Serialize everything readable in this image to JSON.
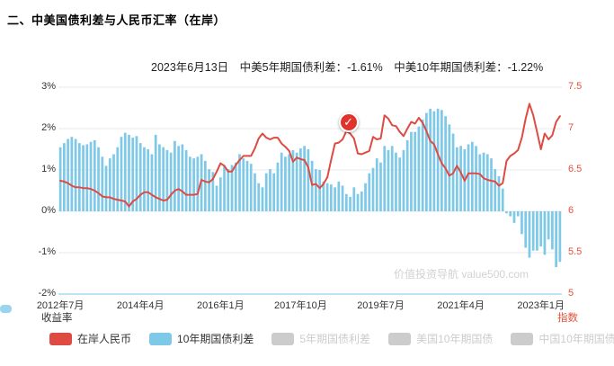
{
  "page": {
    "title": "二、中美国债利差与人民币汇率（在岸）",
    "subtitle": "2023年6月13日　中美5年期国债利差：-1.61%　中美10年期国债利差：-1.22%"
  },
  "watermark": "价值投资导航 value500.com",
  "chart_data": {
    "type": "bar",
    "subtype": "dual-axis combo: bars (left % axis) + line (right index axis)",
    "n_points": 132,
    "x_start": "2012-07",
    "x_interval": "month",
    "x_tick_labels": [
      "2012年7月",
      "2014年4月",
      "2016年1月",
      "2017年10月",
      "2019年7月",
      "2021年4月",
      "2023年1月"
    ],
    "x_tick_month_indices": [
      0,
      21,
      42,
      63,
      84,
      105,
      126
    ],
    "yaxis_left": {
      "name": "收益率",
      "min": -2,
      "max": 3,
      "ticks": [
        "3%",
        "2%",
        "1%",
        "0%",
        "-1%",
        "-2%"
      ],
      "color": "#333333"
    },
    "yaxis_right": {
      "name": "指数",
      "min": 5,
      "max": 7.5,
      "ticks": [
        "7.5",
        "7",
        "6.5",
        "6",
        "5.5",
        "5"
      ],
      "color": "#e8503a"
    },
    "axis_line_color": "#7ec9e8",
    "grid": true,
    "legend_position": "bottom",
    "series": [
      {
        "name": "10年期国债利差",
        "type": "bar",
        "axis": "left",
        "unit": "%",
        "color": "#7ec9e8",
        "values": [
          1.55,
          1.65,
          1.75,
          1.8,
          1.75,
          1.65,
          1.6,
          1.62,
          1.68,
          1.72,
          1.55,
          1.32,
          1.1,
          1.28,
          1.38,
          1.55,
          1.8,
          1.9,
          1.85,
          1.78,
          1.82,
          1.65,
          1.55,
          1.5,
          1.38,
          1.85,
          1.62,
          1.55,
          1.48,
          1.42,
          1.7,
          1.58,
          1.62,
          1.48,
          1.32,
          1.28,
          1.32,
          1.38,
          1.22,
          1.02,
          0.95,
          0.62,
          0.82,
          1.12,
          1.02,
          1.12,
          1.18,
          1.38,
          1.28,
          1.22,
          1.15,
          0.92,
          0.68,
          0.58,
          0.92,
          1.02,
          0.92,
          1.18,
          1.42,
          1.32,
          1.38,
          1.48,
          1.42,
          1.52,
          1.58,
          1.5,
          1.22,
          1.02,
          1.0,
          0.72,
          0.68,
          0.65,
          0.58,
          0.72,
          0.62,
          0.42,
          0.35,
          0.58,
          0.42,
          0.48,
          0.68,
          0.92,
          1.05,
          1.28,
          1.18,
          1.58,
          1.48,
          1.58,
          1.42,
          1.3,
          1.48,
          1.72,
          1.92,
          1.92,
          2.05,
          2.22,
          2.38,
          2.48,
          2.42,
          2.48,
          2.45,
          2.3,
          2.1,
          1.88,
          1.55,
          1.58,
          1.5,
          1.62,
          1.68,
          1.58,
          1.38,
          1.42,
          1.38,
          1.28,
          1.02,
          0.85,
          0.55,
          -0.05,
          -0.12,
          -0.28,
          -0.12,
          -0.55,
          -0.88,
          -1.12,
          -0.95,
          -0.95,
          -0.85,
          -1.05,
          -0.68,
          -0.92,
          -1.35,
          -1.22
        ]
      },
      {
        "name": "在岸人民币",
        "type": "line",
        "axis": "right",
        "unit": "CNY per USD",
        "color": "#dd4b43",
        "values": [
          6.37,
          6.36,
          6.34,
          6.31,
          6.29,
          6.29,
          6.28,
          6.28,
          6.27,
          6.25,
          6.22,
          6.18,
          6.17,
          6.17,
          6.15,
          6.14,
          6.13,
          6.12,
          6.06,
          6.12,
          6.15,
          6.2,
          6.23,
          6.23,
          6.2,
          6.17,
          6.15,
          6.13,
          6.14,
          6.2,
          6.25,
          6.27,
          6.24,
          6.2,
          6.2,
          6.2,
          6.21,
          6.38,
          6.36,
          6.35,
          6.39,
          6.48,
          6.58,
          6.55,
          6.48,
          6.48,
          6.56,
          6.62,
          6.67,
          6.67,
          6.67,
          6.76,
          6.88,
          6.94,
          6.89,
          6.87,
          6.89,
          6.89,
          6.82,
          6.78,
          6.73,
          6.6,
          6.65,
          6.63,
          6.62,
          6.53,
          6.32,
          6.33,
          6.28,
          6.33,
          6.41,
          6.62,
          6.82,
          6.83,
          6.87,
          6.97,
          6.94,
          6.88,
          6.7,
          6.69,
          6.71,
          6.73,
          6.9,
          6.87,
          6.88,
          7.16,
          7.12,
          7.04,
          7.03,
          6.96,
          6.91,
          7.0,
          7.08,
          7.06,
          7.13,
          7.07,
          6.97,
          6.85,
          6.81,
          6.69,
          6.58,
          6.52,
          6.43,
          6.46,
          6.55,
          6.47,
          6.37,
          6.46,
          6.46,
          6.46,
          6.45,
          6.4,
          6.38,
          6.37,
          6.36,
          6.31,
          6.34,
          6.61,
          6.67,
          6.7,
          6.74,
          6.89,
          7.12,
          7.3,
          7.16,
          6.96,
          6.75,
          6.94,
          6.87,
          6.92,
          7.08,
          7.15
        ]
      }
    ],
    "marker": {
      "shape": "circle-check-badge",
      "glyph": "✓",
      "month_index": 76,
      "color": "#e0332c"
    }
  },
  "legend": {
    "items": [
      {
        "label": "在岸人民币",
        "color": "#dd4b43",
        "active": true
      },
      {
        "label": "10年期国债利差",
        "color": "#7ec9e8",
        "active": true
      },
      {
        "label": "5年期国债利差",
        "color": "#cccccc",
        "active": false
      },
      {
        "label": "美国10年期国债",
        "color": "#cccccc",
        "active": false
      },
      {
        "label": "中国10年期国债",
        "color": "#cccccc",
        "active": false
      }
    ]
  }
}
